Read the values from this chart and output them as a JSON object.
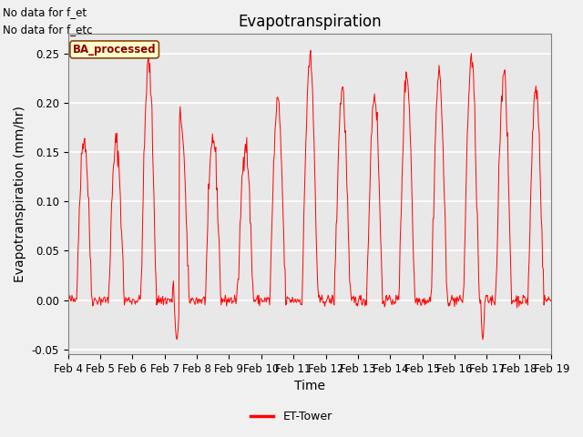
{
  "title": "Evapotranspiration",
  "ylabel": "Evapotranspiration (mm/hr)",
  "xlabel": "Time",
  "ylim": [
    -0.055,
    0.27
  ],
  "yticks": [
    -0.05,
    0.0,
    0.05,
    0.1,
    0.15,
    0.2,
    0.25
  ],
  "line_color": "#FF0000",
  "bg_color": "#E8E8E8",
  "fig_bg_color": "#F0F0F0",
  "text_no_data1": "No data for f_et",
  "text_no_data2": "No data for f_etc",
  "box_label": "BA_processed",
  "legend_label": "ET-Tower",
  "xtick_labels": [
    "Feb 4",
    "Feb 5",
    "Feb 6",
    "Feb 7",
    "Feb 8",
    "Feb 9",
    "Feb 10",
    "Feb 11",
    "Feb 12",
    "Feb 13",
    "Feb 14",
    "Feb 15",
    "Feb 16",
    "Feb 17",
    "Feb 18",
    "Feb 19"
  ],
  "title_fontsize": 12,
  "axis_fontsize": 10,
  "tick_fontsize": 8.5,
  "daily_peaks": [
    0.165,
    0.16,
    0.24,
    0.185,
    0.165,
    0.16,
    0.2,
    0.245,
    0.215,
    0.21,
    0.23,
    0.23,
    0.245,
    0.23,
    0.215
  ]
}
